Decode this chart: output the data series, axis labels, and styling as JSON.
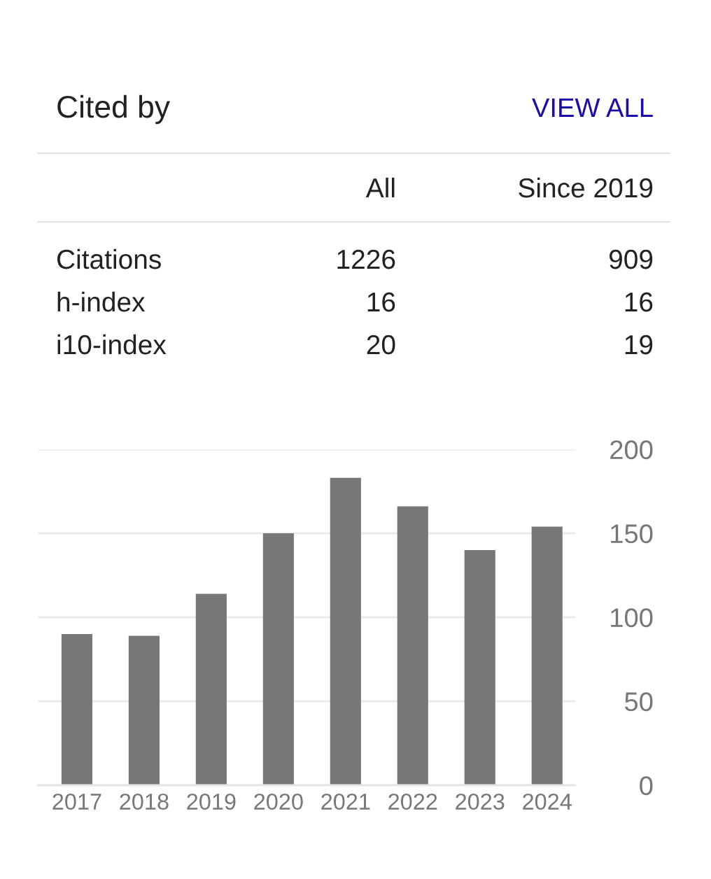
{
  "chart_data": [
    {
      "type": "other",
      "title": "Cited by",
      "annotations": [
        "VIEW ALL",
        "All",
        "Since 2019",
        "Citations",
        "1226",
        "909",
        "h-index",
        "16",
        "16",
        "i10-index",
        "20",
        "19"
      ]
    },
    {
      "type": "bar",
      "categories": [
        "2017",
        "2018",
        "2019",
        "2020",
        "2021",
        "2022",
        "2023",
        "2024"
      ],
      "values": [
        90,
        89,
        114,
        150,
        183,
        166,
        140,
        154
      ],
      "color": "#777777",
      "ylim": [
        0,
        200
      ],
      "yticks": [
        0,
        50,
        100,
        150,
        200
      ],
      "grid": "y"
    }
  ]
}
